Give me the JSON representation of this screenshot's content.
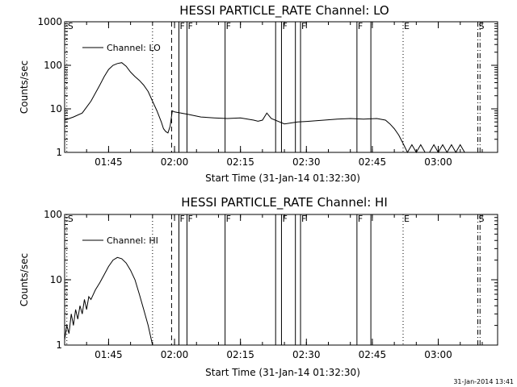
{
  "stamp": "31-Jan-2014 13:41",
  "chart_data": [
    {
      "type": "line",
      "title": "HESSI PARTICLE_RATE Channel: LO",
      "xlabel": "Start Time (31-Jan-14 01:32:30)",
      "ylabel": "Counts/sec",
      "xlim": [
        "01:35:00",
        "03:13:30"
      ],
      "ylim": [
        1,
        1000
      ],
      "yscale": "log",
      "xticks": [
        "01:45",
        "02:00",
        "02:15",
        "02:30",
        "02:45",
        "03:00"
      ],
      "yticks": [
        "1",
        "10",
        "100",
        "1000"
      ],
      "legend": "Channel: LO",
      "legend_position": "top-left",
      "series": [
        {
          "name": "Channel: LO",
          "x": [
            "01:35:00",
            "01:37:00",
            "01:39:00",
            "01:41:00",
            "01:43:00",
            "01:44:00",
            "01:45:00",
            "01:46:00",
            "01:47:00",
            "01:48:00",
            "01:49:00",
            "01:50:00",
            "01:51:00",
            "01:52:00",
            "01:53:00",
            "01:54:00",
            "01:55:00",
            "01:56:00",
            "01:57:00",
            "01:57:30",
            "01:58:00",
            "01:58:30",
            "01:59:00",
            "01:59:30",
            "02:00:00",
            "02:03:00",
            "02:06:00",
            "02:09:00",
            "02:12:00",
            "02:15:00",
            "02:18:00",
            "02:19:00",
            "02:20:00",
            "02:21:00",
            "02:22:00",
            "02:25:00",
            "02:28:00",
            "02:31:00",
            "02:34:00",
            "02:37:00",
            "02:40:00",
            "02:43:00",
            "02:46:00",
            "02:48:00",
            "02:49:00",
            "02:50:00",
            "02:51:00",
            "02:52:00",
            "02:53:00",
            "02:54:00",
            "02:55:00",
            "02:56:00",
            "02:57:00",
            "02:58:00",
            "02:59:00",
            "03:00:00",
            "03:01:00",
            "03:02:00",
            "03:03:00",
            "03:04:00",
            "03:05:00",
            "03:06:00"
          ],
          "values": [
            5.5,
            6.5,
            8,
            15,
            35,
            55,
            80,
            100,
            110,
            115,
            95,
            70,
            55,
            45,
            35,
            25,
            15,
            9,
            5,
            3.5,
            3,
            2.8,
            4,
            9,
            8.5,
            7.5,
            6.5,
            6.2,
            6,
            6.2,
            5.5,
            5.2,
            5.5,
            8,
            6,
            4.5,
            5,
            5.2,
            5.5,
            5.8,
            6,
            5.8,
            6,
            5.5,
            4.5,
            3.5,
            2.5,
            1.6,
            1,
            1.5,
            1,
            1.5,
            1,
            1,
            1.5,
            1,
            1.5,
            1,
            1.5,
            1,
            1.5,
            1
          ]
        }
      ]
    },
    {
      "type": "line",
      "title": "HESSI PARTICLE_RATE Channel: HI",
      "xlabel": "Start Time (31-Jan-14 01:32:30)",
      "ylabel": "Counts/sec",
      "xlim": [
        "01:35:00",
        "03:13:30"
      ],
      "ylim": [
        1,
        100
      ],
      "yscale": "log",
      "xticks": [
        "01:45",
        "02:00",
        "02:15",
        "02:30",
        "02:45",
        "03:00"
      ],
      "yticks": [
        "1",
        "10",
        "100"
      ],
      "legend": "Channel: HI",
      "legend_position": "top-left",
      "series": [
        {
          "name": "Channel: HI",
          "x": [
            "01:35:00",
            "01:35:30",
            "01:36:00",
            "01:36:30",
            "01:37:00",
            "01:37:30",
            "01:38:00",
            "01:38:30",
            "01:39:00",
            "01:39:30",
            "01:40:00",
            "01:40:30",
            "01:41:00",
            "01:42:00",
            "01:43:00",
            "01:44:00",
            "01:45:00",
            "01:46:00",
            "01:47:00",
            "01:48:00",
            "01:49:00",
            "01:50:00",
            "01:51:00",
            "01:52:00",
            "01:53:00",
            "01:54:00",
            "01:55:00"
          ],
          "values": [
            1.2,
            2,
            1.5,
            3,
            2,
            3.5,
            2.5,
            4,
            3,
            5,
            3.5,
            5.5,
            5,
            7,
            9,
            12,
            16,
            20,
            22,
            21,
            18,
            14,
            10,
            6,
            3.5,
            2,
            1
          ]
        }
      ]
    }
  ],
  "markers": [
    {
      "t": "01:35:30",
      "style": "dotted",
      "label": "S"
    },
    {
      "t": "01:55:00",
      "style": "dotted",
      "label": ""
    },
    {
      "t": "01:59:20",
      "style": "dashed",
      "label": ""
    },
    {
      "t": "02:01:00",
      "style": "solid",
      "label": "F"
    },
    {
      "t": "02:02:50",
      "style": "solid",
      "label": "F"
    },
    {
      "t": "02:11:30",
      "style": "solid",
      "label": "F"
    },
    {
      "t": "02:23:00",
      "style": "solid",
      "label": ""
    },
    {
      "t": "02:24:20",
      "style": "solid",
      "label": "F"
    },
    {
      "t": "02:27:30",
      "style": "solid",
      "label": ""
    },
    {
      "t": "02:28:40",
      "style": "solid",
      "label": "F"
    },
    {
      "t": "02:41:30",
      "style": "solid",
      "label": "F"
    },
    {
      "t": "02:44:40",
      "style": "solid",
      "label": ""
    },
    {
      "t": "02:52:00",
      "style": "dotted",
      "label": "E"
    },
    {
      "t": "03:09:00",
      "style": "dashdot",
      "label": "S"
    },
    {
      "t": "03:09:30",
      "style": "dashdot",
      "label": ""
    }
  ]
}
